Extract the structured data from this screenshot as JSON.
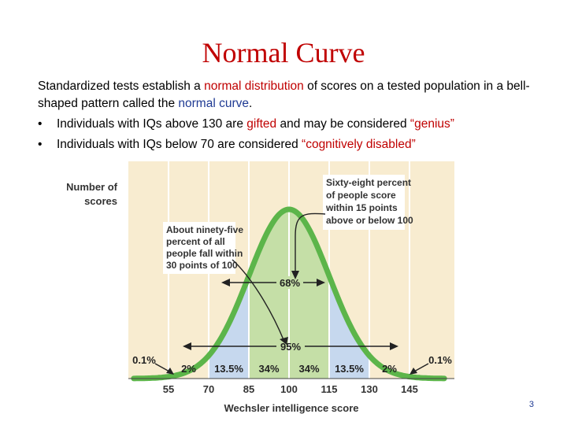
{
  "title": "Normal Curve",
  "intro": {
    "p1": "Standardized tests establish a ",
    "h1": "normal distribution",
    "p2": " of scores on a tested population in a bell-shaped pattern called the ",
    "h2": "normal curve",
    "p3": "."
  },
  "bullets": [
    {
      "marker": "•",
      "a": "Individuals with IQs above 130 are ",
      "b": "gifted",
      "c": " and may be considered ",
      "d": "“genius”"
    },
    {
      "marker": "•",
      "a": "Individuals with IQs below 70 are considered ",
      "b": "“cognitively disabled”"
    }
  ],
  "figure": {
    "ylabel_line1": "Number of",
    "ylabel_line2": "scores",
    "xlabel": "Wechsler intelligence score",
    "ticks": [
      "55",
      "70",
      "85",
      "100",
      "115",
      "130",
      "145"
    ],
    "callout68": [
      "Sixty-eight percent",
      "of people score",
      "within 15 points",
      "above or below 100"
    ],
    "callout95": [
      "About ninety-five",
      "percent of all",
      "people fall within",
      "30 points of 100"
    ],
    "label68": "68%",
    "label95": "95%",
    "tail_left": "0.1%",
    "tail_right": "0.1%",
    "segments": [
      "2%",
      "13.5%",
      "34%",
      "34%",
      "13.5%",
      "2%"
    ],
    "colors": {
      "curve": "#5cb54a",
      "band68": "#c5dfa7",
      "band95": "#c6d8ee",
      "bg": "#f8ecd0",
      "grid": "#ffffff"
    }
  },
  "page_number": "3"
}
